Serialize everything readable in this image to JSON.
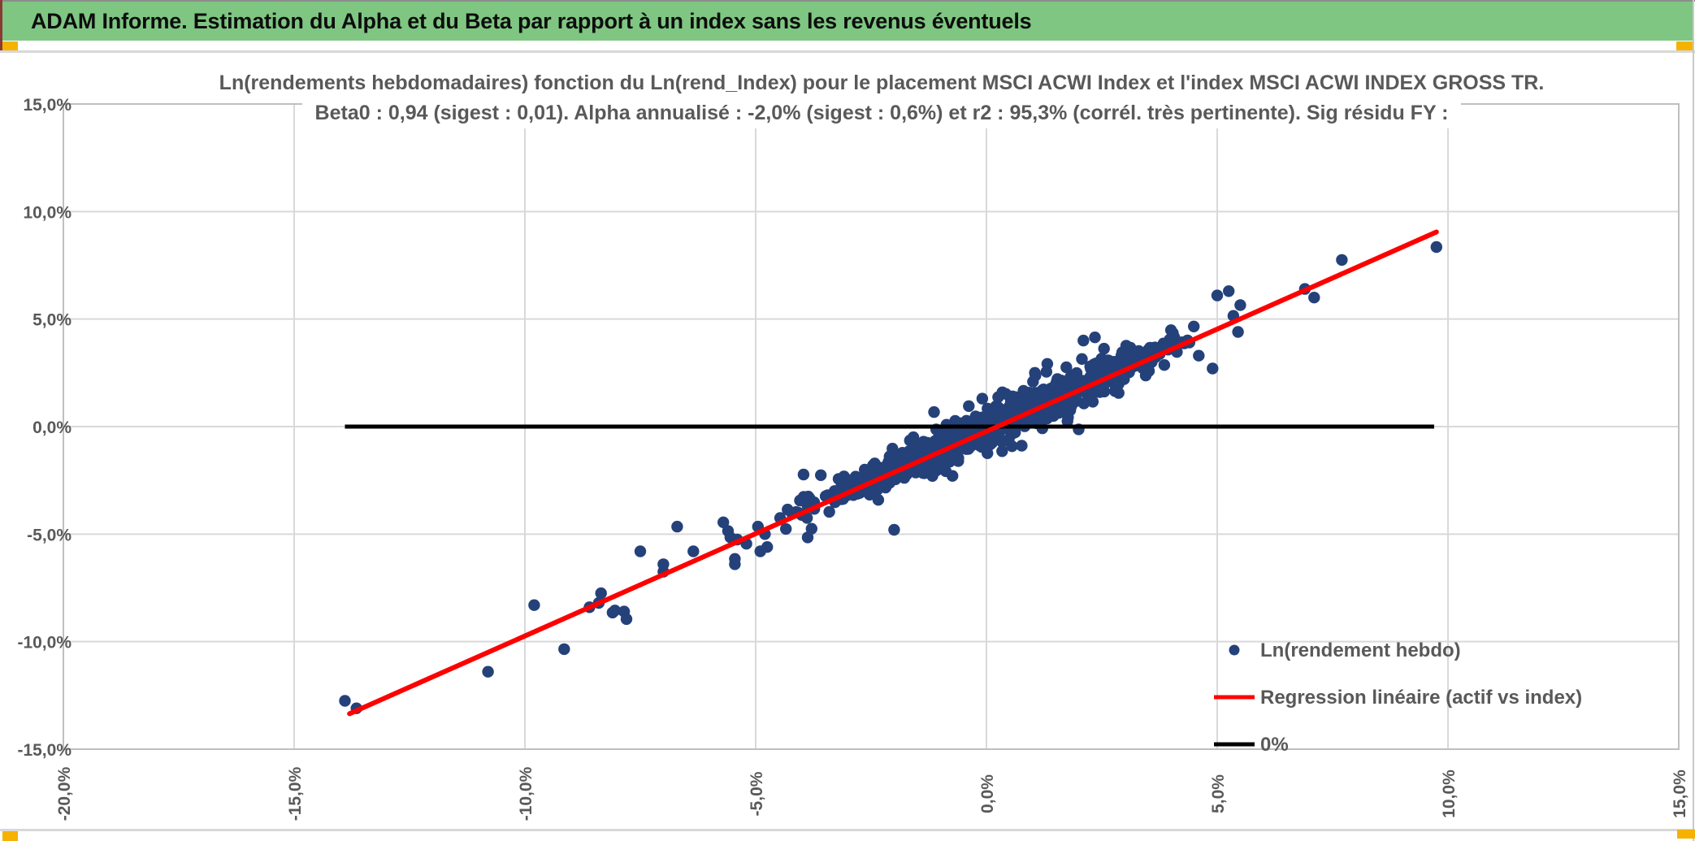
{
  "header": {
    "title": "ADAM Informe. Estimation du Alpha et du Beta par rapport à un index sans les revenus éventuels",
    "bar_color": "#7FC682",
    "accent_color": "#F5B201"
  },
  "chart_data": {
    "type": "scatter",
    "title": "Ln(rendements hebdomadaires) fonction du Ln(rend_Index) pour le placement MSCI ACWI Index et l'index MSCI ACWI INDEX GROSS TR.",
    "subtitle": "Beta0 : 0,94 (sigest : 0,01). Alpha annualisé : -2,0% (sigest : 0,6%) et r2 : 95,3% (corrél. très pertinente). Sig résidu FY :",
    "xlabel": "",
    "ylabel": "",
    "xlim": [
      -20,
      15
    ],
    "ylim": [
      -15,
      15
    ],
    "grid": true,
    "grid_color": "#d9d9d9",
    "border_color": "#bfbfbf",
    "text_color": "#595959",
    "x_ticks": [
      {
        "v": -20,
        "label": "-20,0%"
      },
      {
        "v": -15,
        "label": "-15,0%"
      },
      {
        "v": -10,
        "label": "-10,0%"
      },
      {
        "v": -5,
        "label": "-5,0%"
      },
      {
        "v": 0,
        "label": "0,0%"
      },
      {
        "v": 5,
        "label": "5,0%"
      },
      {
        "v": 10,
        "label": "10,0%"
      },
      {
        "v": 15,
        "label": "15,0%"
      }
    ],
    "y_ticks": [
      {
        "v": 15,
        "label": "15,0%"
      },
      {
        "v": 10,
        "label": "10,0%"
      },
      {
        "v": 5,
        "label": "5,0%"
      },
      {
        "v": 0,
        "label": "0,0%"
      },
      {
        "v": -5,
        "label": "-5,0%"
      },
      {
        "v": -10,
        "label": "-10,0%"
      },
      {
        "v": -15,
        "label": "-15,0%"
      }
    ],
    "series": [
      {
        "name": "Ln(rendement hebdo)",
        "type": "scatter",
        "color": "#24417A",
        "marker_radius": 7.2,
        "regression_stats": {
          "beta0": "0,94",
          "beta0_sigest": "0,01",
          "alpha_annualise": "-2,0%",
          "alpha_sigest": "0,6%",
          "r2": "95,3%"
        },
        "outlier_points": [
          [
            -13.9,
            -12.75
          ],
          [
            -13.65,
            -13.1
          ],
          [
            -10.8,
            -11.4
          ],
          [
            -9.8,
            -8.3
          ],
          [
            -9.15,
            -10.35
          ],
          [
            -8.6,
            -8.4
          ],
          [
            -8.4,
            -8.2
          ],
          [
            -8.35,
            -7.75
          ],
          [
            -8.1,
            -8.65
          ],
          [
            -8.05,
            -8.55
          ],
          [
            -7.85,
            -8.6
          ],
          [
            -7.8,
            -8.95
          ],
          [
            -7.5,
            -5.8
          ],
          [
            -7.0,
            -6.4
          ],
          [
            -7.0,
            -6.75
          ],
          [
            -6.7,
            -4.65
          ],
          [
            -6.35,
            -5.8
          ],
          [
            -5.7,
            -4.45
          ],
          [
            -5.6,
            -4.85
          ],
          [
            -5.55,
            -5.15
          ],
          [
            -5.45,
            -6.15
          ],
          [
            -5.45,
            -6.4
          ],
          [
            -5.4,
            -5.25
          ],
          [
            -5.2,
            -5.45
          ],
          [
            -4.95,
            -4.65
          ],
          [
            -4.9,
            -5.8
          ],
          [
            -4.8,
            -5.0
          ],
          [
            -4.75,
            -5.6
          ],
          [
            -2.0,
            -4.8
          ],
          [
            1.05,
            2.5
          ],
          [
            1.3,
            2.55
          ],
          [
            2.1,
            4.0
          ],
          [
            2.35,
            4.15
          ],
          [
            4.6,
            3.3
          ],
          [
            4.9,
            2.7
          ],
          [
            5.0,
            6.1
          ],
          [
            5.25,
            6.3
          ],
          [
            5.5,
            5.65
          ],
          [
            5.35,
            5.15
          ],
          [
            5.45,
            4.4
          ],
          [
            6.9,
            6.4
          ],
          [
            7.1,
            6.0
          ],
          [
            7.7,
            7.75
          ],
          [
            9.75,
            8.35
          ]
        ],
        "cluster_model": {
          "n": 1320,
          "seed": 77041,
          "x_mean": 0.25,
          "x_sigma": 1.65,
          "x_min": -4.7,
          "x_max": 4.85,
          "beta": 0.951,
          "alpha": -0.05,
          "noise_sigma": 0.33,
          "noise_sigma_wide": 0.72,
          "wide_fraction": 0.15,
          "noise_clamp": 2.1
        }
      },
      {
        "name": "Regression linéaire (actif vs index)",
        "type": "line",
        "color": "#FE0000",
        "width": 6,
        "points": [
          [
            -13.8,
            -13.35
          ],
          [
            9.75,
            9.05
          ]
        ]
      },
      {
        "name": "0%",
        "type": "line",
        "color": "#000000",
        "width": 5,
        "points": [
          [
            -13.9,
            0
          ],
          [
            9.7,
            0
          ]
        ]
      }
    ],
    "legend": {
      "position": "inside-bottom-right",
      "entries": [
        {
          "label": "Ln(rendement hebdo)",
          "marker": "dot",
          "color": "#24417A"
        },
        {
          "label": "Regression linéaire (actif vs index)",
          "marker": "line",
          "color": "#FE0000"
        },
        {
          "label": "0%",
          "marker": "line",
          "color": "#000000"
        }
      ]
    }
  }
}
